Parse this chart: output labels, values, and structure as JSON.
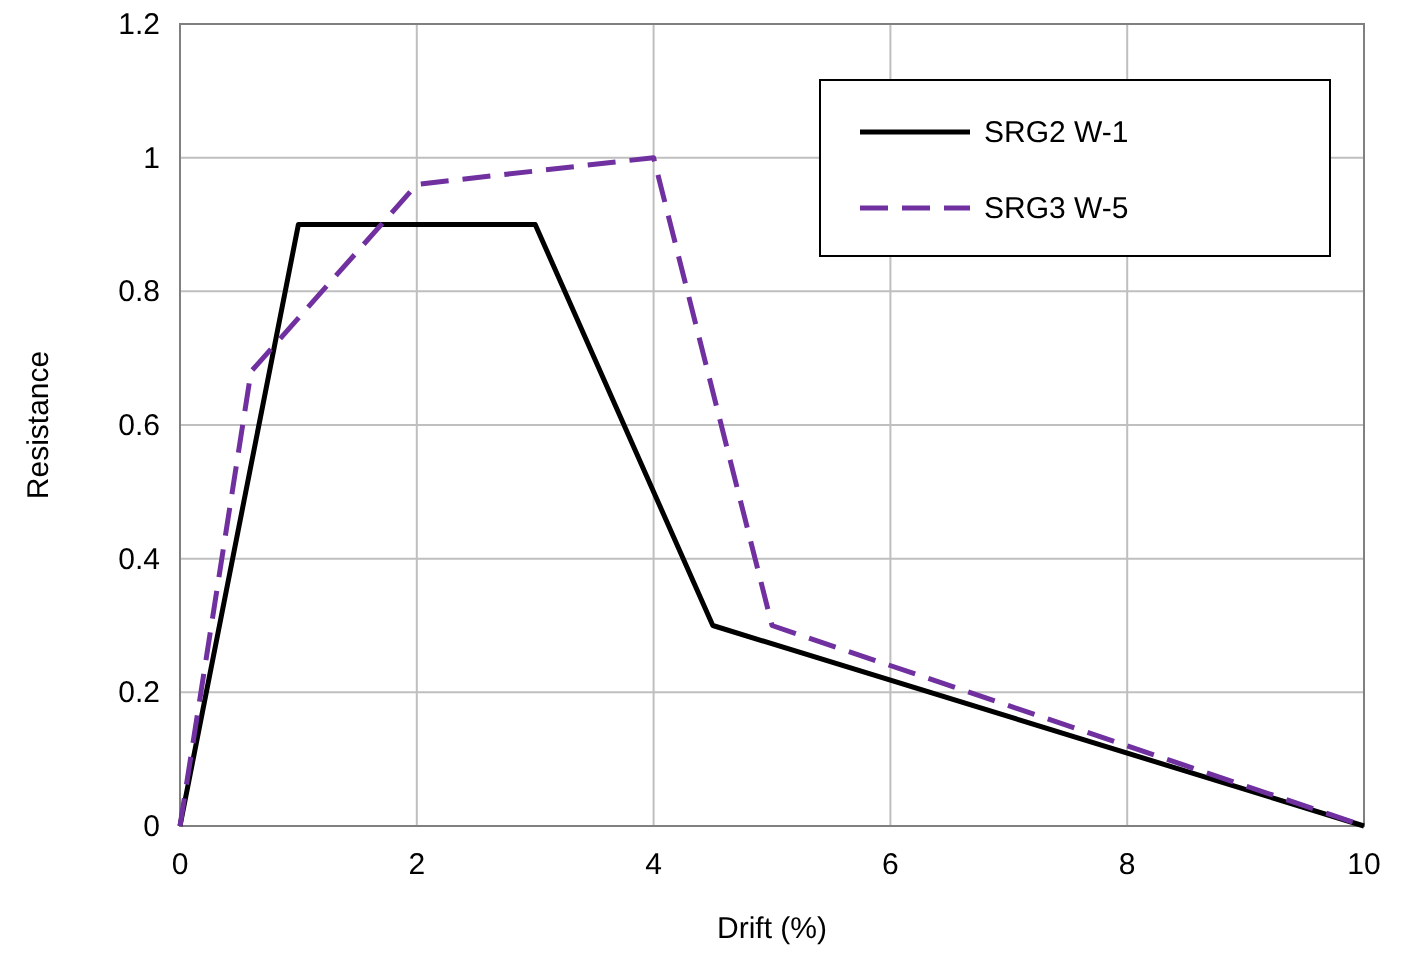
{
  "chart_data": {
    "type": "line",
    "xlabel": "Drift (%)",
    "ylabel": "Resistance",
    "xlim": [
      0,
      10
    ],
    "xticks": [
      0,
      2,
      4,
      6,
      8,
      10
    ],
    "ylim": [
      0,
      1.2
    ],
    "yticks": [
      0,
      0.2,
      0.4,
      0.6,
      0.8,
      1,
      1.2
    ],
    "grid": true,
    "legend": "top right",
    "marker": "none",
    "series": [
      {
        "name": "SRG2 W-1",
        "color": "#000000",
        "line_style": "solid",
        "x": [
          0,
          1,
          3,
          4.5,
          10
        ],
        "values": [
          0,
          0.9,
          0.9,
          0.3,
          0
        ]
      },
      {
        "name": "SRG3 W-5",
        "color": "#7030a0",
        "line_style": "dashed",
        "x": [
          0,
          0.6,
          2,
          4,
          5,
          10
        ],
        "values": [
          0,
          0.68,
          0.96,
          1,
          0.3,
          0
        ]
      }
    ]
  }
}
